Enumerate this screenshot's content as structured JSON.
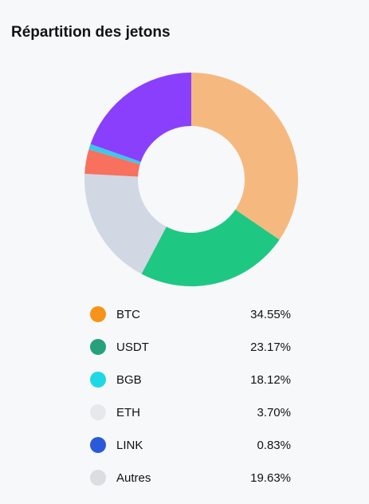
{
  "chart_data": {
    "type": "donut",
    "title": "Répartition des jetons",
    "categories": [
      "BTC",
      "USDT",
      "BGB",
      "ETH",
      "LINK",
      "Autres"
    ],
    "values": [
      34.55,
      23.17,
      18.12,
      3.7,
      0.83,
      19.63
    ],
    "value_labels": [
      "34.55%",
      "23.17%",
      "18.12%",
      "3.70%",
      "0.83%",
      "19.63%"
    ],
    "colors": [
      "#f5b97f",
      "#1ec882",
      "#d1d7e3",
      "#f8705e",
      "#3cc8ea",
      "#8a3ffc"
    ]
  }
}
